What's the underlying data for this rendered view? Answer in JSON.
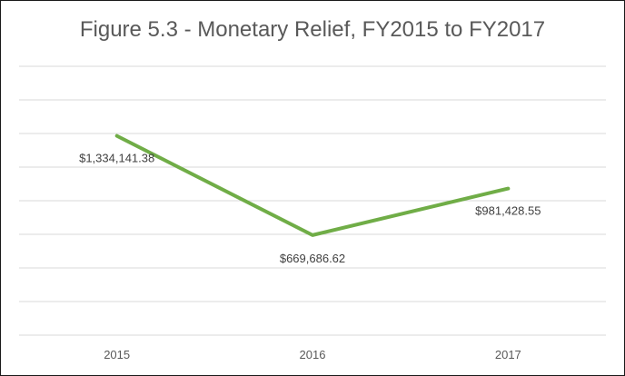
{
  "chart_data": {
    "type": "line",
    "title": "Figure 5.3 - Monetary Relief, FY2015 to FY2017",
    "categories": [
      "2015",
      "2016",
      "2017"
    ],
    "series": [
      {
        "name": "Monetary Relief",
        "values": [
          1334141.38,
          669686.62,
          981428.55
        ],
        "labels": [
          "$1,334,141.38",
          "$669,686.62",
          "$981,428.55"
        ]
      }
    ],
    "ylim": [
      0,
      1800000
    ],
    "gridlines": 9,
    "line_color": "#70ad47",
    "xlabel": "",
    "ylabel": ""
  }
}
